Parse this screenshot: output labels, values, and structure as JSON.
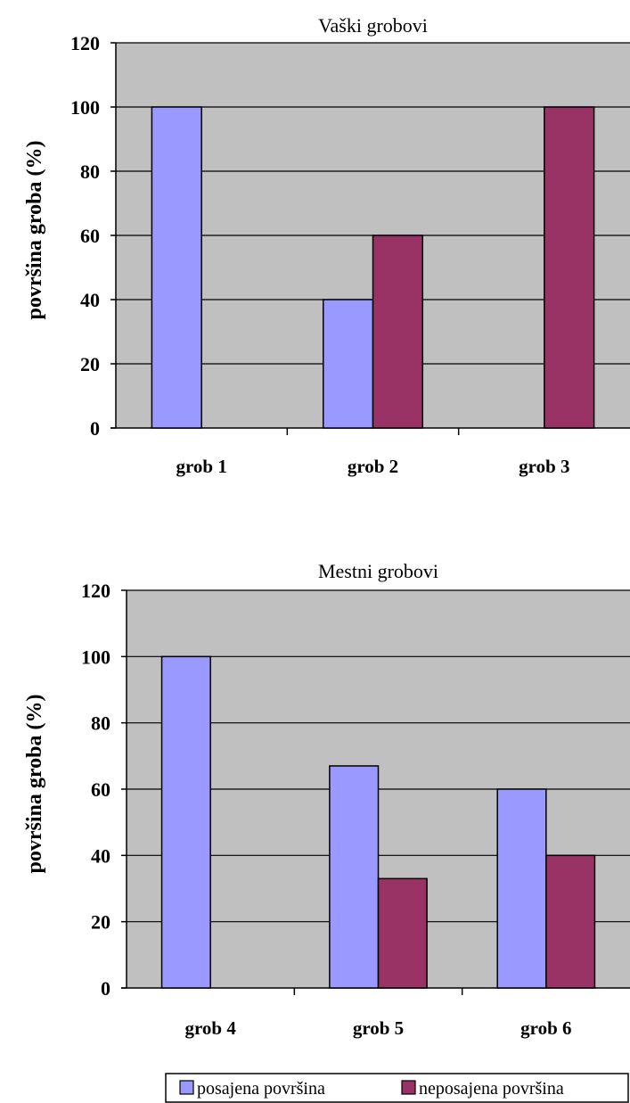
{
  "chart_data": [
    {
      "type": "bar",
      "title": "Vaški grobovi",
      "ylabel": "površina groba (%)",
      "xlabel": "",
      "categories": [
        "grob 1",
        "grob 2",
        "grob 3"
      ],
      "ylim": [
        0,
        120
      ],
      "yticks": [
        0,
        20,
        40,
        60,
        80,
        100,
        120
      ],
      "grid": true,
      "series": [
        {
          "name": "posajena površina",
          "values": [
            100,
            40,
            0
          ]
        },
        {
          "name": "neposajena površina",
          "values": [
            0,
            60,
            100
          ]
        }
      ]
    },
    {
      "type": "bar",
      "title": "Mestni grobovi",
      "ylabel": "površina groba (%)",
      "xlabel": "",
      "categories": [
        "grob 4",
        "grob 5",
        "grob 6"
      ],
      "ylim": [
        0,
        120
      ],
      "yticks": [
        0,
        20,
        40,
        60,
        80,
        100,
        120
      ],
      "grid": true,
      "series": [
        {
          "name": "posajena površina",
          "values": [
            100,
            67,
            60
          ]
        },
        {
          "name": "neposajena površina",
          "values": [
            0,
            33,
            40
          ]
        }
      ]
    }
  ],
  "legend": {
    "placement": "bottom-right",
    "items": [
      "posajena površina",
      "neposajena površina"
    ]
  },
  "colors": {
    "series1": "#9999FF",
    "series2": "#993366",
    "plot_bg": "#C0C0C0"
  }
}
